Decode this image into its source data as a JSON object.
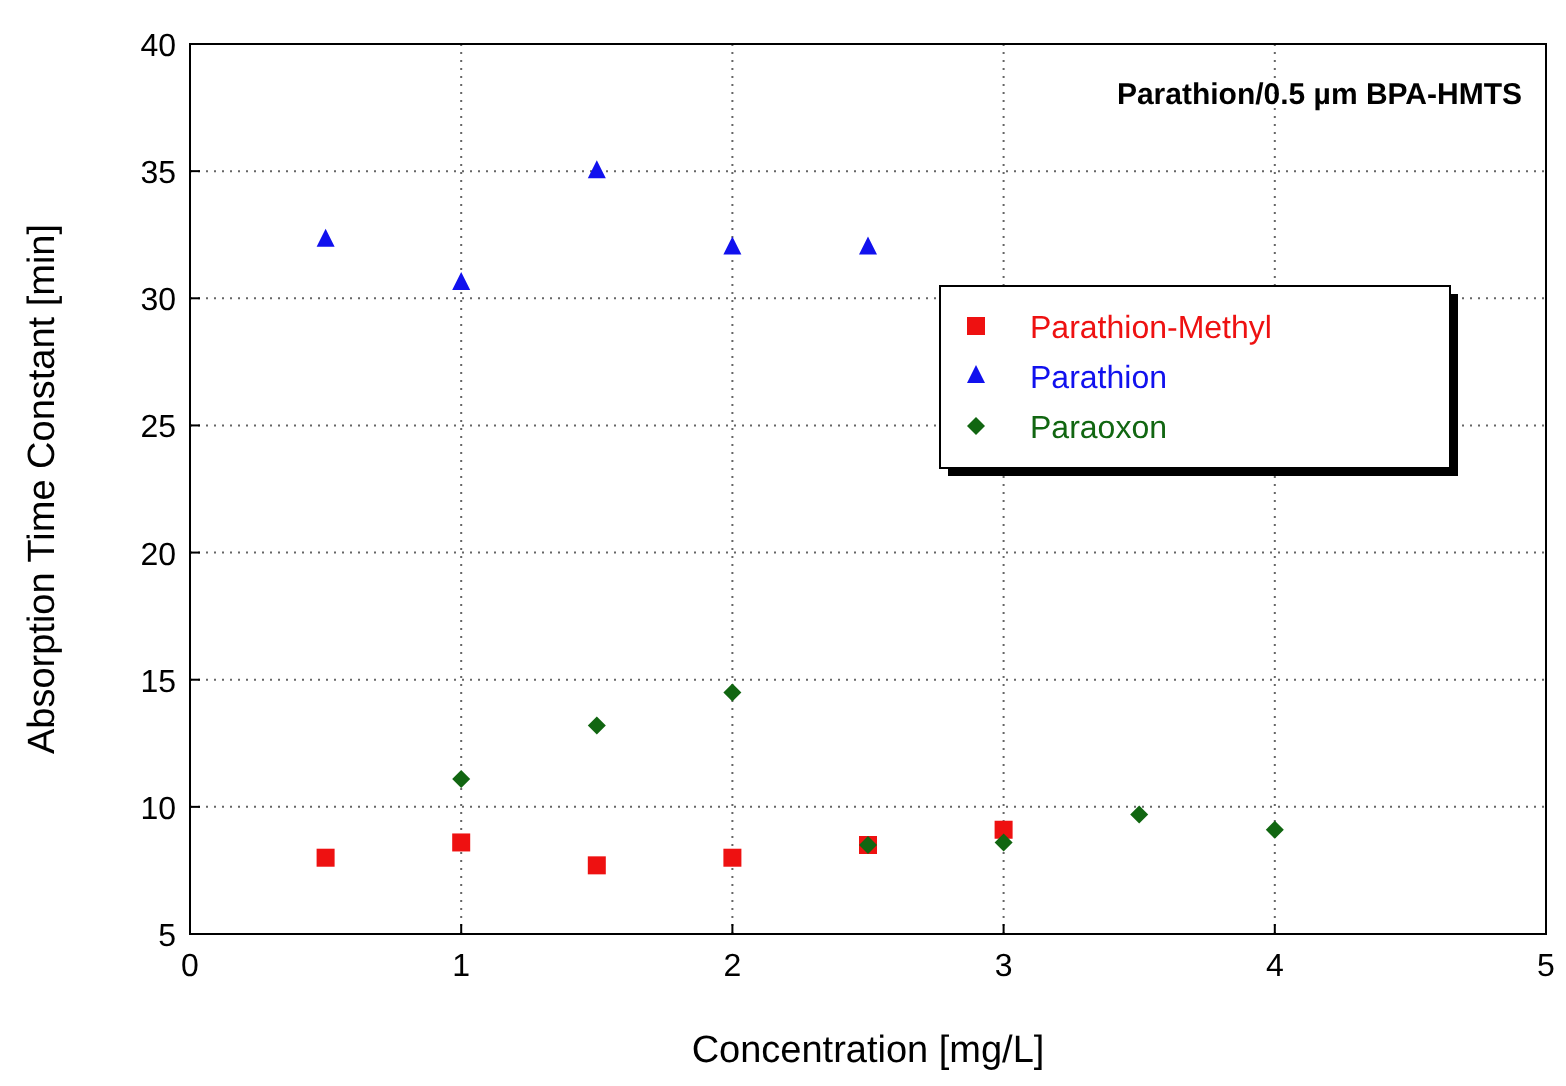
{
  "chart_data": {
    "type": "scatter",
    "title": "Parathion/0.5 µm BPA-HMTS",
    "xlabel": "Concentration [mg/L]",
    "ylabel": "Absorption Time Constant [min]",
    "xlim": [
      0,
      5
    ],
    "xticks": [
      0,
      1,
      2,
      3,
      4,
      5
    ],
    "ylim": [
      5,
      40
    ],
    "yticks": [
      5,
      10,
      15,
      20,
      25,
      30,
      35,
      40
    ],
    "grid": true,
    "line_style": "dotted",
    "legend": "right",
    "series": [
      {
        "name": "Parathion-Methyl",
        "color": "#ee1111",
        "marker": "square",
        "x": [
          0.5,
          1,
          1.5,
          2,
          2.5,
          3
        ],
        "values": [
          8.0,
          8.6,
          7.7,
          8.0,
          8.5,
          9.1
        ]
      },
      {
        "name": "Parathion",
        "color": "#1111ee",
        "marker": "triangle",
        "x": [
          0.5,
          1,
          1.5,
          2,
          2.5
        ],
        "values": [
          32.3,
          30.6,
          35.0,
          32.0,
          32.0
        ]
      },
      {
        "name": "Paraoxon",
        "color": "#116611",
        "marker": "diamond",
        "x": [
          1,
          1.5,
          2,
          2.5,
          3,
          3.5,
          4
        ],
        "values": [
          11.1,
          13.2,
          14.5,
          8.5,
          8.6,
          9.7,
          9.1
        ]
      }
    ]
  }
}
